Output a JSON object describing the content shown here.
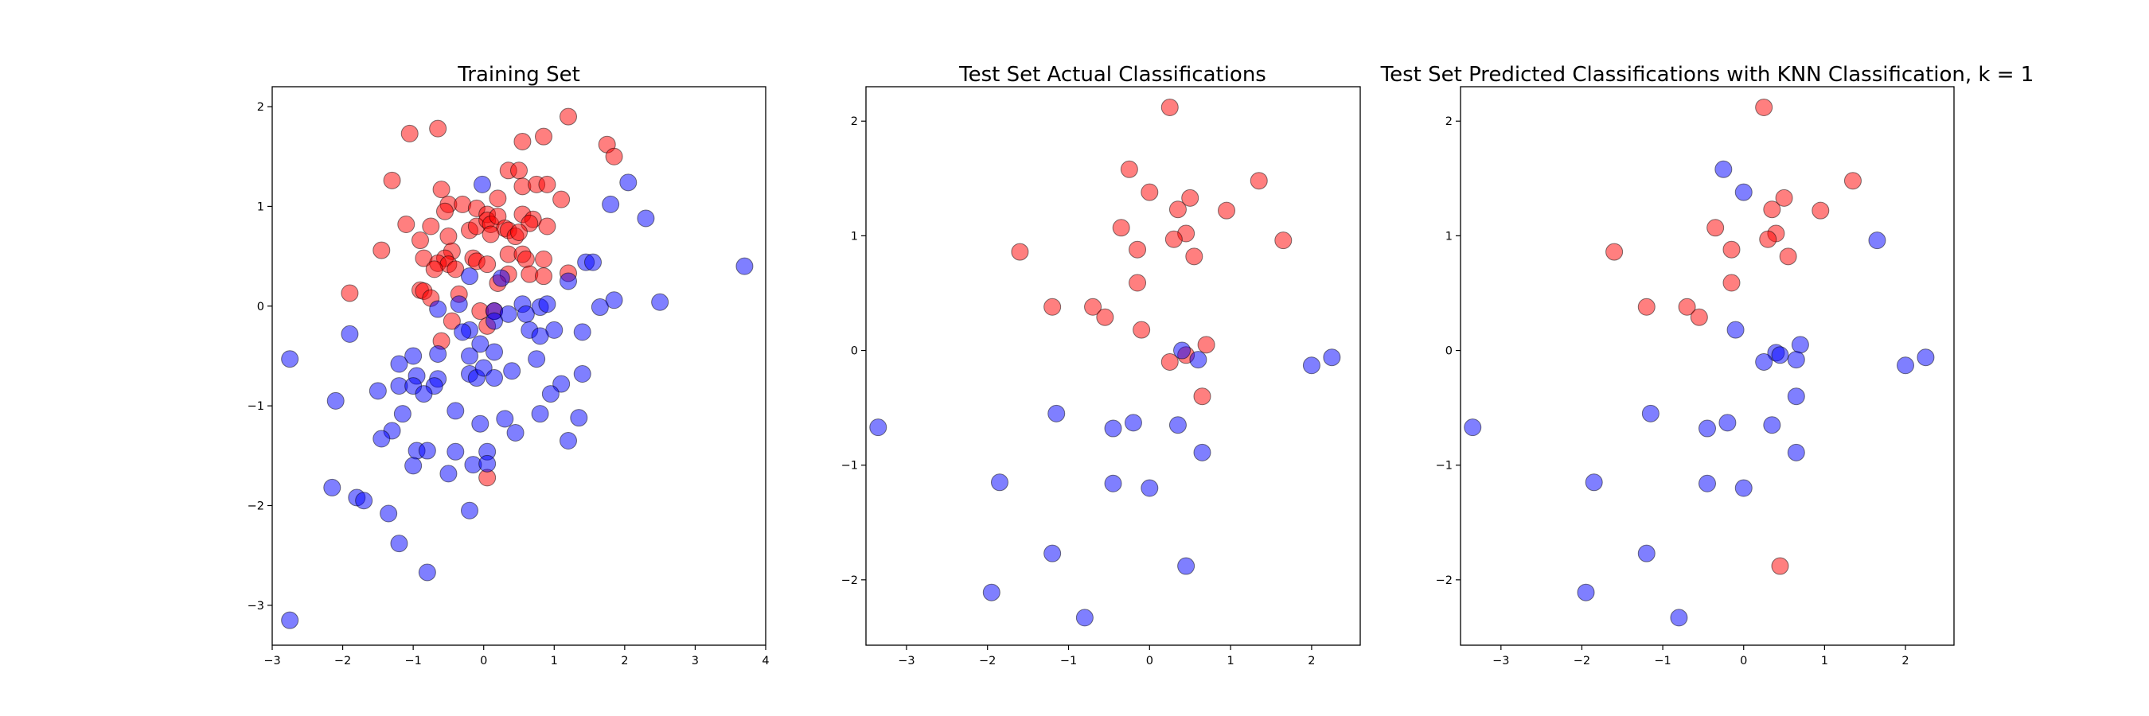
{
  "colors": {
    "class_red": "#ff0000",
    "class_blue": "#0000ff",
    "marker_opacity": 0.5
  },
  "chart_data": [
    {
      "type": "scatter",
      "title": "Training Set",
      "xlim": [
        -3,
        4
      ],
      "ylim": [
        -3.4,
        2.2
      ],
      "xticks": [
        -3,
        -2,
        -1,
        0,
        1,
        2,
        3,
        4
      ],
      "yticks": [
        -3,
        -2,
        -1,
        0,
        1,
        2
      ],
      "grid": false,
      "series": [
        {
          "class": "red",
          "points": [
            [
              -1.05,
              1.73
            ],
            [
              -0.65,
              1.78
            ],
            [
              1.2,
              1.9
            ],
            [
              1.75,
              1.62
            ],
            [
              1.85,
              1.5
            ],
            [
              0.55,
              1.65
            ],
            [
              0.85,
              1.7
            ],
            [
              -1.3,
              1.26
            ],
            [
              -0.6,
              1.17
            ],
            [
              0.35,
              1.36
            ],
            [
              0.5,
              1.36
            ],
            [
              0.55,
              1.2
            ],
            [
              0.75,
              1.22
            ],
            [
              0.9,
              1.22
            ],
            [
              1.1,
              1.07
            ],
            [
              -0.5,
              1.02
            ],
            [
              -0.3,
              1.02
            ],
            [
              -0.55,
              0.95
            ],
            [
              -0.1,
              0.98
            ],
            [
              0.2,
              1.08
            ],
            [
              0.55,
              0.92
            ],
            [
              0.7,
              0.87
            ],
            [
              0.05,
              0.92
            ],
            [
              -1.1,
              0.82
            ],
            [
              -0.75,
              0.8
            ],
            [
              -0.2,
              0.76
            ],
            [
              -0.1,
              0.8
            ],
            [
              0.05,
              0.86
            ],
            [
              0.1,
              0.82
            ],
            [
              0.2,
              0.9
            ],
            [
              0.3,
              0.78
            ],
            [
              0.65,
              0.83
            ],
            [
              0.9,
              0.8
            ],
            [
              -0.9,
              0.66
            ],
            [
              -0.5,
              0.7
            ],
            [
              0.1,
              0.72
            ],
            [
              0.35,
              0.76
            ],
            [
              0.45,
              0.7
            ],
            [
              0.5,
              0.74
            ],
            [
              -1.45,
              0.56
            ],
            [
              -0.45,
              0.55
            ],
            [
              -0.55,
              0.48
            ],
            [
              -0.85,
              0.48
            ],
            [
              -0.65,
              0.43
            ],
            [
              -0.5,
              0.42
            ],
            [
              -0.15,
              0.48
            ],
            [
              -0.1,
              0.45
            ],
            [
              0.05,
              0.42
            ],
            [
              0.35,
              0.52
            ],
            [
              0.55,
              0.52
            ],
            [
              0.6,
              0.47
            ],
            [
              0.85,
              0.47
            ],
            [
              -0.7,
              0.37
            ],
            [
              -0.4,
              0.37
            ],
            [
              0.35,
              0.32
            ],
            [
              0.65,
              0.32
            ],
            [
              0.85,
              0.3
            ],
            [
              1.2,
              0.33
            ],
            [
              -1.9,
              0.13
            ],
            [
              -0.9,
              0.16
            ],
            [
              -0.85,
              0.15
            ],
            [
              -0.75,
              0.08
            ],
            [
              -0.35,
              0.12
            ],
            [
              0.2,
              0.23
            ],
            [
              -0.05,
              -0.05
            ],
            [
              0.15,
              -0.05
            ],
            [
              -0.45,
              -0.15
            ],
            [
              0.05,
              -0.2
            ],
            [
              -0.6,
              -0.35
            ],
            [
              0.05,
              -1.72
            ]
          ]
        },
        {
          "class": "blue",
          "points": [
            [
              -0.02,
              1.22
            ],
            [
              2.05,
              1.24
            ],
            [
              2.3,
              0.88
            ],
            [
              1.8,
              1.02
            ],
            [
              1.45,
              0.44
            ],
            [
              1.55,
              0.44
            ],
            [
              3.7,
              0.4
            ],
            [
              1.2,
              0.25
            ],
            [
              0.25,
              0.28
            ],
            [
              -0.2,
              0.3
            ],
            [
              1.85,
              0.06
            ],
            [
              2.5,
              0.04
            ],
            [
              1.65,
              -0.01
            ],
            [
              0.55,
              0.02
            ],
            [
              0.8,
              -0.01
            ],
            [
              0.9,
              0.02
            ],
            [
              0.15,
              -0.05
            ],
            [
              0.35,
              -0.08
            ],
            [
              0.6,
              -0.08
            ],
            [
              0.15,
              -0.15
            ],
            [
              -0.65,
              -0.03
            ],
            [
              -0.35,
              0.02
            ],
            [
              -0.2,
              -0.24
            ],
            [
              -0.3,
              -0.26
            ],
            [
              1.0,
              -0.24
            ],
            [
              1.4,
              -0.26
            ],
            [
              0.65,
              -0.24
            ],
            [
              0.8,
              -0.3
            ],
            [
              -0.05,
              -0.38
            ],
            [
              -1.9,
              -0.28
            ],
            [
              -2.75,
              -0.53
            ],
            [
              -1.0,
              -0.5
            ],
            [
              -0.65,
              -0.48
            ],
            [
              -0.2,
              -0.5
            ],
            [
              0.15,
              -0.46
            ],
            [
              0.75,
              -0.53
            ],
            [
              -1.2,
              -0.58
            ],
            [
              -0.2,
              -0.68
            ],
            [
              -0.1,
              -0.72
            ],
            [
              0.0,
              -0.62
            ],
            [
              0.15,
              -0.72
            ],
            [
              0.4,
              -0.65
            ],
            [
              -0.65,
              -0.73
            ],
            [
              -0.95,
              -0.7
            ],
            [
              -1.2,
              -0.8
            ],
            [
              -1.0,
              -0.8
            ],
            [
              -0.7,
              -0.8
            ],
            [
              -1.5,
              -0.85
            ],
            [
              1.1,
              -0.78
            ],
            [
              1.4,
              -0.68
            ],
            [
              0.95,
              -0.88
            ],
            [
              -0.85,
              -0.88
            ],
            [
              -2.1,
              -0.95
            ],
            [
              -0.4,
              -1.05
            ],
            [
              -1.15,
              -1.08
            ],
            [
              0.3,
              -1.13
            ],
            [
              0.8,
              -1.08
            ],
            [
              1.35,
              -1.12
            ],
            [
              -0.05,
              -1.18
            ],
            [
              -1.3,
              -1.25
            ],
            [
              0.45,
              -1.27
            ],
            [
              -1.45,
              -1.33
            ],
            [
              1.2,
              -1.35
            ],
            [
              -0.95,
              -1.45
            ],
            [
              -0.8,
              -1.45
            ],
            [
              -0.4,
              -1.46
            ],
            [
              0.05,
              -1.46
            ],
            [
              -1.0,
              -1.6
            ],
            [
              -0.15,
              -1.59
            ],
            [
              0.05,
              -1.58
            ],
            [
              -0.5,
              -1.68
            ],
            [
              -2.15,
              -1.82
            ],
            [
              -1.8,
              -1.92
            ],
            [
              -1.7,
              -1.95
            ],
            [
              -1.35,
              -2.08
            ],
            [
              -0.2,
              -2.05
            ],
            [
              -1.2,
              -2.38
            ],
            [
              -0.8,
              -2.67
            ],
            [
              -2.75,
              -3.15
            ]
          ]
        }
      ]
    },
    {
      "type": "scatter",
      "title": "Test Set Actual Classifications",
      "xlim": [
        -3.5,
        2.6
      ],
      "ylim": [
        -2.57,
        2.3
      ],
      "xticks": [
        -3,
        -2,
        -1,
        0,
        1,
        2
      ],
      "yticks": [
        -2,
        -1,
        0,
        1,
        2
      ],
      "grid": false,
      "series": [
        {
          "class": "red",
          "points": [
            [
              0.25,
              2.12
            ],
            [
              -0.25,
              1.58
            ],
            [
              1.35,
              1.48
            ],
            [
              0.0,
              1.38
            ],
            [
              0.5,
              1.33
            ],
            [
              0.35,
              1.23
            ],
            [
              0.95,
              1.22
            ],
            [
              -0.35,
              1.07
            ],
            [
              0.45,
              1.02
            ],
            [
              0.3,
              0.97
            ],
            [
              1.65,
              0.96
            ],
            [
              -1.6,
              0.86
            ],
            [
              -0.15,
              0.88
            ],
            [
              0.55,
              0.82
            ],
            [
              -0.15,
              0.59
            ],
            [
              -1.2,
              0.38
            ],
            [
              -0.7,
              0.38
            ],
            [
              -0.55,
              0.29
            ],
            [
              -0.1,
              0.18
            ],
            [
              0.7,
              0.05
            ],
            [
              0.25,
              -0.1
            ],
            [
              0.45,
              -0.04
            ],
            [
              0.65,
              -0.4
            ]
          ]
        },
        {
          "class": "blue",
          "points": [
            [
              0.4,
              0.0
            ],
            [
              0.6,
              -0.08
            ],
            [
              2.25,
              -0.06
            ],
            [
              2.0,
              -0.13
            ],
            [
              -3.35,
              -0.67
            ],
            [
              -1.15,
              -0.55
            ],
            [
              -0.2,
              -0.63
            ],
            [
              -0.45,
              -0.68
            ],
            [
              0.35,
              -0.65
            ],
            [
              0.65,
              -0.89
            ],
            [
              -1.85,
              -1.15
            ],
            [
              -0.45,
              -1.16
            ],
            [
              0.0,
              -1.2
            ],
            [
              -1.2,
              -1.77
            ],
            [
              0.45,
              -1.88
            ],
            [
              -1.95,
              -2.11
            ],
            [
              -0.8,
              -2.33
            ]
          ]
        }
      ]
    },
    {
      "type": "scatter",
      "title": "Test Set Predicted Classifications with KNN Classification, k = 1",
      "xlim": [
        -3.5,
        2.6
      ],
      "ylim": [
        -2.57,
        2.3
      ],
      "xticks": [
        -3,
        -2,
        -1,
        0,
        1,
        2
      ],
      "yticks": [
        -2,
        -1,
        0,
        1,
        2
      ],
      "grid": false,
      "series": [
        {
          "class": "red",
          "points": [
            [
              0.25,
              2.12
            ],
            [
              1.35,
              1.48
            ],
            [
              0.5,
              1.33
            ],
            [
              0.35,
              1.23
            ],
            [
              0.95,
              1.22
            ],
            [
              -0.35,
              1.07
            ],
            [
              0.4,
              1.02
            ],
            [
              0.3,
              0.97
            ],
            [
              -1.6,
              0.86
            ],
            [
              -0.15,
              0.88
            ],
            [
              0.55,
              0.82
            ],
            [
              -0.15,
              0.59
            ],
            [
              -1.2,
              0.38
            ],
            [
              -0.7,
              0.38
            ],
            [
              -0.55,
              0.29
            ],
            [
              0.45,
              -1.88
            ]
          ]
        },
        {
          "class": "blue",
          "points": [
            [
              -0.25,
              1.58
            ],
            [
              0.0,
              1.38
            ],
            [
              1.65,
              0.96
            ],
            [
              -0.1,
              0.18
            ],
            [
              0.7,
              0.05
            ],
            [
              0.4,
              -0.02
            ],
            [
              0.45,
              -0.04
            ],
            [
              0.25,
              -0.1
            ],
            [
              0.65,
              -0.08
            ],
            [
              2.25,
              -0.06
            ],
            [
              2.0,
              -0.13
            ],
            [
              0.65,
              -0.4
            ],
            [
              -3.35,
              -0.67
            ],
            [
              -1.15,
              -0.55
            ],
            [
              -0.2,
              -0.63
            ],
            [
              -0.45,
              -0.68
            ],
            [
              0.35,
              -0.65
            ],
            [
              0.65,
              -0.89
            ],
            [
              -1.85,
              -1.15
            ],
            [
              -0.45,
              -1.16
            ],
            [
              0.0,
              -1.2
            ],
            [
              -1.2,
              -1.77
            ],
            [
              -1.95,
              -2.11
            ],
            [
              -0.8,
              -2.33
            ]
          ]
        }
      ]
    }
  ]
}
